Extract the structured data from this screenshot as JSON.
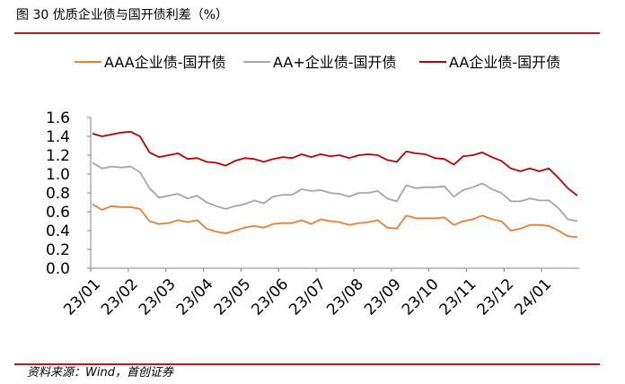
{
  "figure_title": "图 30 优质企业债与国开债利差（%）",
  "source": "资料来源：Wind，首创证券",
  "chart_data": {
    "type": "line",
    "title": "",
    "xlabel": "",
    "ylabel": "",
    "ylim": [
      0.0,
      1.6
    ],
    "yticks": [
      "0.0",
      "0.2",
      "0.4",
      "0.6",
      "0.8",
      "1.0",
      "1.2",
      "1.4",
      "1.6"
    ],
    "xticks": [
      "23/01",
      "23/02",
      "23/03",
      "23/04",
      "23/05",
      "23/06",
      "23/07",
      "23/08",
      "23/09",
      "23/10",
      "23/11",
      "23/12",
      "24/01"
    ],
    "legend_position": "top",
    "grid": false,
    "x": [
      "23/01",
      "23/01",
      "23/01",
      "23/01",
      "23/02",
      "23/02",
      "23/02",
      "23/02",
      "23/03",
      "23/03",
      "23/03",
      "23/03",
      "23/04",
      "23/04",
      "23/04",
      "23/04",
      "23/05",
      "23/05",
      "23/05",
      "23/05",
      "23/06",
      "23/06",
      "23/06",
      "23/06",
      "23/07",
      "23/07",
      "23/07",
      "23/07",
      "23/08",
      "23/08",
      "23/08",
      "23/08",
      "23/09",
      "23/09",
      "23/09",
      "23/09",
      "23/10",
      "23/10",
      "23/10",
      "23/10",
      "23/11",
      "23/11",
      "23/11",
      "23/11",
      "23/12",
      "23/12",
      "23/12",
      "23/12",
      "24/01",
      "24/01",
      "24/01",
      "24/01"
    ],
    "series": [
      {
        "name": "AAA企业债-国开债",
        "color": "#ed7d31",
        "values": [
          0.68,
          0.62,
          0.66,
          0.65,
          0.65,
          0.63,
          0.5,
          0.47,
          0.48,
          0.51,
          0.49,
          0.51,
          0.42,
          0.39,
          0.37,
          0.4,
          0.43,
          0.45,
          0.43,
          0.47,
          0.48,
          0.48,
          0.51,
          0.47,
          0.52,
          0.5,
          0.49,
          0.46,
          0.48,
          0.49,
          0.51,
          0.43,
          0.42,
          0.56,
          0.53,
          0.53,
          0.53,
          0.54,
          0.46,
          0.5,
          0.52,
          0.56,
          0.52,
          0.5,
          0.4,
          0.42,
          0.46,
          0.46,
          0.45,
          0.4,
          0.34,
          0.33
        ]
      },
      {
        "name": "AA+企业债-国开债",
        "color": "#a5a5a5",
        "values": [
          1.12,
          1.06,
          1.08,
          1.07,
          1.08,
          1.02,
          0.85,
          0.75,
          0.77,
          0.79,
          0.74,
          0.77,
          0.7,
          0.66,
          0.63,
          0.66,
          0.68,
          0.72,
          0.69,
          0.76,
          0.78,
          0.78,
          0.84,
          0.82,
          0.83,
          0.8,
          0.79,
          0.76,
          0.8,
          0.8,
          0.82,
          0.74,
          0.71,
          0.88,
          0.85,
          0.86,
          0.86,
          0.87,
          0.76,
          0.83,
          0.86,
          0.9,
          0.84,
          0.8,
          0.71,
          0.71,
          0.74,
          0.72,
          0.72,
          0.64,
          0.52,
          0.5
        ]
      },
      {
        "name": "AA企业债-国开债",
        "color": "#c00000",
        "values": [
          1.43,
          1.4,
          1.42,
          1.44,
          1.45,
          1.4,
          1.23,
          1.18,
          1.2,
          1.22,
          1.16,
          1.17,
          1.13,
          1.12,
          1.09,
          1.14,
          1.17,
          1.16,
          1.13,
          1.16,
          1.18,
          1.17,
          1.21,
          1.18,
          1.21,
          1.19,
          1.2,
          1.17,
          1.2,
          1.21,
          1.2,
          1.15,
          1.13,
          1.24,
          1.22,
          1.21,
          1.17,
          1.16,
          1.1,
          1.19,
          1.2,
          1.23,
          1.18,
          1.14,
          1.06,
          1.03,
          1.06,
          1.03,
          1.06,
          0.96,
          0.85,
          0.77
        ]
      }
    ]
  }
}
